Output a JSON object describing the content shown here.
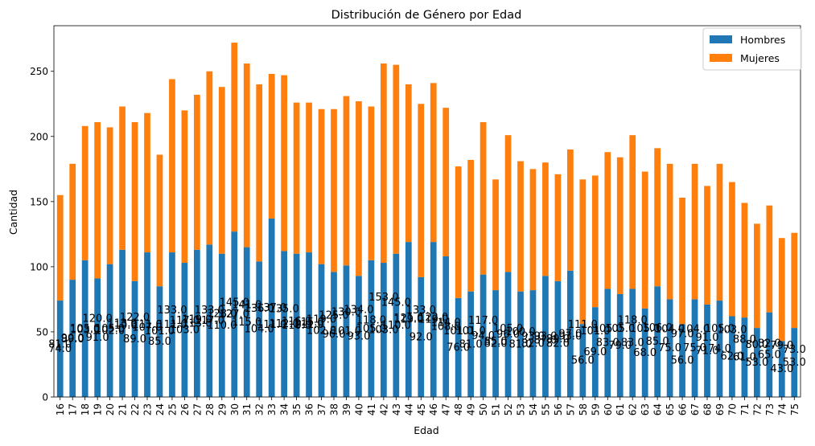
{
  "chart_data": {
    "type": "bar",
    "stacked": true,
    "title": "Distribución de Género por Edad",
    "xlabel": "Edad",
    "ylabel": "Cantidad",
    "ylim": [
      0,
      285
    ],
    "yticks": [
      0,
      50,
      100,
      150,
      200,
      250
    ],
    "legend_position": "top-right",
    "grid": false,
    "categories": [
      "16",
      "17",
      "18",
      "19",
      "20",
      "21",
      "22",
      "23",
      "24",
      "25",
      "26",
      "27",
      "28",
      "29",
      "30",
      "31",
      "32",
      "33",
      "34",
      "35",
      "36",
      "37",
      "38",
      "39",
      "40",
      "41",
      "42",
      "43",
      "44",
      "45",
      "46",
      "47",
      "48",
      "49",
      "50",
      "51",
      "52",
      "53",
      "54",
      "55",
      "56",
      "57",
      "58",
      "59",
      "60",
      "61",
      "62",
      "63",
      "64",
      "65",
      "66",
      "67",
      "68",
      "69",
      "70",
      "71",
      "72",
      "73",
      "74",
      "75"
    ],
    "series": [
      {
        "name": "Hombres",
        "color": "#1f77b4",
        "values": [
          74,
          90,
          105,
          91,
          102,
          113,
          89,
          111,
          85,
          111,
          103,
          113,
          117,
          110,
          127,
          115,
          104,
          137,
          112,
          110,
          111,
          102,
          96,
          101,
          93,
          105,
          103,
          110,
          119,
          92,
          119,
          108,
          76,
          81,
          94,
          82,
          96,
          81,
          82,
          93,
          89,
          97,
          56,
          69,
          83,
          79,
          83,
          68,
          85,
          75,
          56,
          75,
          71,
          74,
          62,
          61,
          53,
          65,
          43,
          53
        ],
        "labels": [
          "74.0",
          "90.0",
          "105.0",
          "91.0",
          "102.0",
          "113.0",
          "89.0",
          "111.0",
          "85.0",
          "111.0",
          "103.0",
          "113.0",
          "117.0",
          "110.0",
          "127.0",
          "115.0",
          "104.0",
          "137.0",
          "112.0",
          "110.0",
          "111.0",
          "102.0",
          "96.0",
          "101.0",
          "93.0",
          "105.0",
          "103.0",
          "110.0",
          "119.0",
          "92.0",
          "119.0",
          "108.0",
          "76.0",
          "81.0",
          "94.0",
          "82.0",
          "96.0",
          "81.0",
          "82.0",
          "93.0",
          "89.0",
          "97.0",
          "56.0",
          "69.0",
          "83.0",
          "79.0",
          "83.0",
          "68.0",
          "85.0",
          "75.0",
          "56.0",
          "75.0",
          "71.0",
          "74.0",
          "62.0",
          "61.0",
          "53.0",
          "65.0",
          "43.0",
          "53.0"
        ]
      },
      {
        "name": "Mujeres",
        "color": "#ff7f0e",
        "values": [
          81,
          89,
          103,
          120,
          105,
          110,
          122,
          107,
          101,
          133,
          117,
          119,
          133,
          128,
          145,
          141,
          136,
          111,
          135,
          116,
          115,
          119,
          125,
          130,
          134,
          118,
          153,
          145,
          121,
          133,
          122,
          114,
          101,
          101,
          117,
          85,
          105,
          100,
          93,
          87,
          82,
          93,
          111,
          101,
          105,
          105,
          118,
          105,
          106,
          104,
          97,
          104,
          91,
          105,
          103,
          88,
          80,
          82,
          79,
          73
        ],
        "labels": [
          "81.0",
          "89.0",
          "103.0",
          "120.0",
          "105.0",
          "110.0",
          "122.0",
          "107.0",
          "101.0",
          "133.0",
          "117.0",
          "119.0",
          "133.0",
          "128.0",
          "145.0",
          "141.0",
          "136.0",
          "111.0",
          "135.0",
          "116.0",
          "115.0",
          "119.0",
          "125.0",
          "130.0",
          "134.0",
          "118.0",
          "153.0",
          "145.0",
          "121.0",
          "133.0",
          "122.0",
          "114.0",
          "101.0",
          "101.0",
          "117.0",
          "85.0",
          "105.0",
          "100.0",
          "93.0",
          "87.0",
          "82.0",
          "93.0",
          "111.0",
          "101.0",
          "105.0",
          "105.0",
          "118.0",
          "105.0",
          "106.0",
          "104.0",
          "97.0",
          "104.0",
          "91.0",
          "105.0",
          "103.0",
          "88.0",
          "80.0",
          "82.0",
          "79.0",
          "73.0"
        ]
      }
    ]
  }
}
